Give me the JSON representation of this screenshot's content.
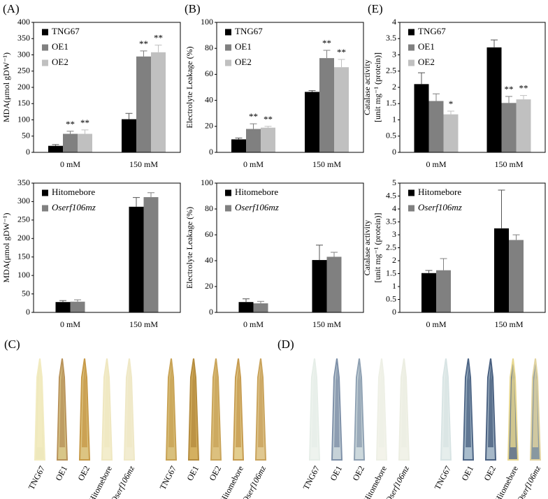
{
  "chart_data": [
    {
      "type": "bar",
      "panel_label": "(A)",
      "ylabel": [
        "MDA(μmol gDW⁻¹)"
      ],
      "categories": [
        "0 mM",
        "150 mM"
      ],
      "ylim": [
        0,
        400
      ],
      "yticks": [
        0,
        50,
        100,
        150,
        200,
        250,
        300,
        350,
        400
      ],
      "grid": false,
      "legend": "upper left",
      "series": [
        {
          "name": "TNG67",
          "color": "#000000",
          "values": [
            20,
            102
          ],
          "errors": [
            4,
            18
          ],
          "sig": [
            null,
            null
          ]
        },
        {
          "name": "OE1",
          "color": "#808080",
          "values": [
            57,
            295
          ],
          "errors": [
            8,
            17
          ],
          "sig": [
            "**",
            "**"
          ]
        },
        {
          "name": "OE2",
          "color": "#c0c0c0",
          "values": [
            57,
            308
          ],
          "errors": [
            12,
            22
          ],
          "sig": [
            "**",
            "**"
          ]
        }
      ]
    },
    {
      "type": "bar",
      "panel_label": "(B)",
      "ylabel": [
        "Electrolyte Leakage (%)"
      ],
      "categories": [
        "0 mM",
        "150 mM"
      ],
      "ylim": [
        0,
        100
      ],
      "yticks": [
        0,
        20,
        40,
        60,
        80,
        100
      ],
      "grid": false,
      "legend": "upper left",
      "series": [
        {
          "name": "TNG67",
          "color": "#000000",
          "values": [
            10,
            46.5
          ],
          "errors": [
            1,
            1
          ],
          "sig": [
            null,
            null
          ]
        },
        {
          "name": "OE1",
          "color": "#808080",
          "values": [
            18,
            72.5
          ],
          "errors": [
            4,
            6
          ],
          "sig": [
            "**",
            "**"
          ]
        },
        {
          "name": "OE2",
          "color": "#c0c0c0",
          "values": [
            19,
            65.5
          ],
          "errors": [
            1,
            6
          ],
          "sig": [
            "**",
            "**"
          ]
        }
      ]
    },
    {
      "type": "bar",
      "panel_label": "(E)",
      "ylabel": [
        "Catalase activity",
        "[unit mg⁻¹ (protein)]"
      ],
      "categories": [
        "0 mM",
        "150 mM"
      ],
      "ylim": [
        0,
        4
      ],
      "yticks": [
        0,
        0.5,
        1,
        1.5,
        2,
        2.5,
        3,
        3.5,
        4
      ],
      "grid": false,
      "legend": "upper left",
      "series": [
        {
          "name": "TNG67",
          "color": "#000000",
          "values": [
            2.1,
            3.23
          ],
          "errors": [
            0.35,
            0.23
          ],
          "sig": [
            null,
            null
          ]
        },
        {
          "name": "OE1",
          "color": "#808080",
          "values": [
            1.58,
            1.52
          ],
          "errors": [
            0.22,
            0.2
          ],
          "sig": [
            null,
            "**"
          ]
        },
        {
          "name": "OE2",
          "color": "#c0c0c0",
          "values": [
            1.17,
            1.63
          ],
          "errors": [
            0.1,
            0.12
          ],
          "sig": [
            "*",
            "**"
          ]
        }
      ]
    },
    {
      "type": "bar",
      "ylabel": [
        "MDA(μmol gDW⁻¹)"
      ],
      "categories": [
        "0 mM",
        "150 mM"
      ],
      "ylim": [
        0,
        350
      ],
      "yticks": [
        0,
        50,
        100,
        150,
        200,
        250,
        300,
        350
      ],
      "grid": false,
      "legend": "upper left",
      "series": [
        {
          "name": "Hitomebore",
          "color": "#000000",
          "values": [
            28,
            286
          ],
          "errors": [
            4,
            25
          ]
        },
        {
          "name": "Oserf106mz",
          "font_style": "italic",
          "color": "#808080",
          "values": [
            29,
            312
          ],
          "errors": [
            5,
            12
          ]
        }
      ]
    },
    {
      "type": "bar",
      "ylabel": [
        "Electrolyte Leakage (%)"
      ],
      "categories": [
        "0 mM",
        "150 mM"
      ],
      "ylim": [
        0,
        100
      ],
      "yticks": [
        0,
        20,
        40,
        60,
        80,
        100
      ],
      "grid": false,
      "legend": "upper left",
      "series": [
        {
          "name": "Hitomebore",
          "color": "#000000",
          "values": [
            8,
            40.5
          ],
          "errors": [
            2.5,
            11.5
          ]
        },
        {
          "name": "Oserf106mz",
          "font_style": "italic",
          "color": "#808080",
          "values": [
            7,
            43
          ],
          "errors": [
            1.5,
            3.5
          ]
        }
      ]
    },
    {
      "type": "bar",
      "ylabel": [
        "Catalase activity",
        "[unit mg⁻¹ (protein)]"
      ],
      "categories": [
        "0 mM",
        "150 mM"
      ],
      "ylim": [
        0,
        5
      ],
      "yticks": [
        0,
        0.5,
        1,
        1.5,
        2,
        2.5,
        3,
        3.5,
        4,
        4.5,
        5
      ],
      "grid": false,
      "legend": "upper left",
      "series": [
        {
          "name": "Hitomebore",
          "color": "#000000",
          "values": [
            1.52,
            3.25
          ],
          "errors": [
            0.1,
            1.48
          ]
        },
        {
          "name": "Oserf106mz",
          "font_style": "italic",
          "color": "#808080",
          "values": [
            1.63,
            2.8
          ],
          "errors": [
            0.45,
            0.2
          ]
        }
      ]
    }
  ],
  "leaf_panels": [
    {
      "label": "(C)",
      "groups": [
        [
          "TNG67",
          "OE1",
          "OE2",
          "Hitomebore",
          "Oserf106mz"
        ],
        [
          "TNG67",
          "OE1",
          "OE2",
          "Hitomebore",
          "Oserf106mz"
        ]
      ]
    },
    {
      "label": "(D)",
      "groups": [
        [
          "TNG67",
          "OE1",
          "OE2",
          "Hitomebore",
          "Oserf106mz"
        ],
        [
          "TNG67",
          "OE1",
          "OE2",
          "Hitomebore",
          "Oserf106mz"
        ]
      ]
    }
  ]
}
